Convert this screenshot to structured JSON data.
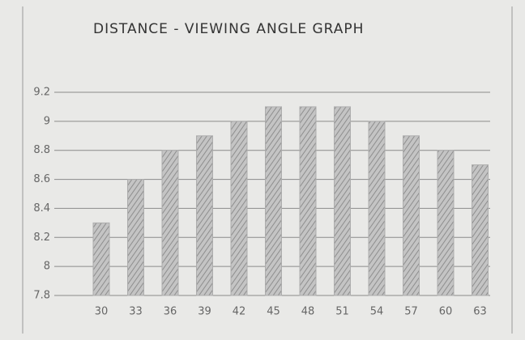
{
  "chart_data": {
    "type": "bar",
    "title": "DISTANCE - VIEWING ANGLE GRAPH",
    "categories": [
      "30",
      "33",
      "36",
      "39",
      "42",
      "45",
      "48",
      "51",
      "54",
      "57",
      "60",
      "63"
    ],
    "values": [
      8.3,
      8.6,
      8.8,
      8.9,
      9,
      9.1,
      9.1,
      9.1,
      9,
      8.9,
      8.8,
      8.7
    ],
    "color": "#adadad",
    "ylim": [
      7.8,
      9.2
    ],
    "yticks": [
      7.8,
      8,
      8.2,
      8.4,
      8.6,
      8.8,
      9,
      9.2
    ],
    "grid": true
  }
}
